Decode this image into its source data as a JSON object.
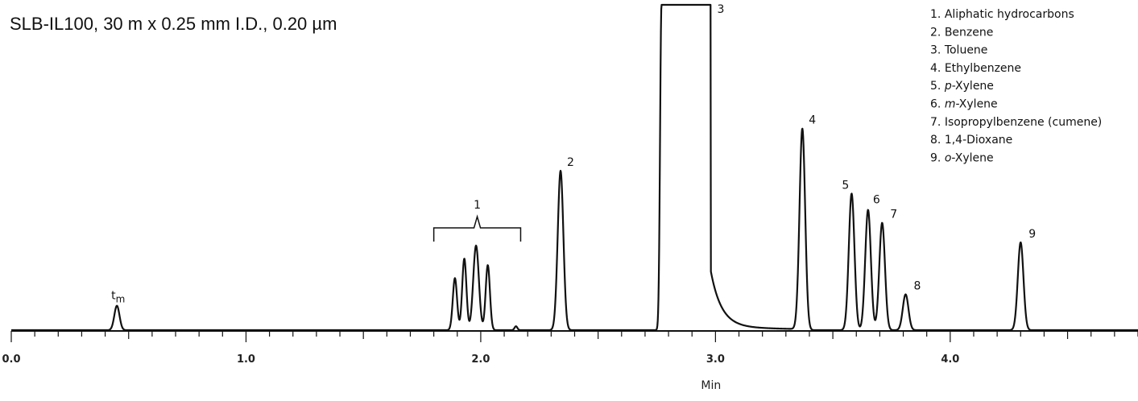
{
  "chart_data": {
    "type": "line",
    "title": "SLB-IL100, 30 m x 0.25 mm I.D., 0.20 µm",
    "xlabel": "Min",
    "ylabel": "",
    "xlim": [
      0.0,
      4.8
    ],
    "x_ticks": [
      "0.0",
      "1.0",
      "2.0",
      "3.0",
      "4.0"
    ],
    "grid": false,
    "legend_position": "top-right",
    "legend": [
      {
        "num": "1.",
        "pre": "Aliphatic hydrocarbons",
        "ital": "",
        "post": ""
      },
      {
        "num": "2.",
        "pre": "Benzene",
        "ital": "",
        "post": ""
      },
      {
        "num": "3.",
        "pre": "Toluene",
        "ital": "",
        "post": ""
      },
      {
        "num": "4.",
        "pre": "Ethylbenzene",
        "ital": "",
        "post": ""
      },
      {
        "num": "5.",
        "pre": "",
        "ital": "p",
        "post": "-Xylene"
      },
      {
        "num": "6.",
        "pre": "",
        "ital": "m",
        "post": "-Xylene"
      },
      {
        "num": "7.",
        "pre": "Isopropylbenzene (cumene)",
        "ital": "",
        "post": ""
      },
      {
        "num": "8.",
        "pre": "1,4-Dioxane",
        "ital": "",
        "post": ""
      },
      {
        "num": "9.",
        "pre": "",
        "ital": "o",
        "post": "-Xylene"
      }
    ],
    "peaks": [
      {
        "label": "tm",
        "rt": 0.45,
        "height": 0.075
      },
      {
        "label": "1",
        "rt": 1.98,
        "height": 0.26,
        "bracket": [
          1.8,
          2.17
        ]
      },
      {
        "label": "2",
        "rt": 2.34,
        "height": 0.49
      },
      {
        "label": "3",
        "rt": 2.88,
        "height": 1.0,
        "offscale": true
      },
      {
        "label": "4",
        "rt": 3.37,
        "height": 0.62
      },
      {
        "label": "5",
        "rt": 3.58,
        "height": 0.42
      },
      {
        "label": "6",
        "rt": 3.65,
        "height": 0.37
      },
      {
        "label": "7",
        "rt": 3.71,
        "height": 0.33
      },
      {
        "label": "8",
        "rt": 3.81,
        "height": 0.11
      },
      {
        "label": "9",
        "rt": 4.3,
        "height": 0.27
      }
    ]
  }
}
